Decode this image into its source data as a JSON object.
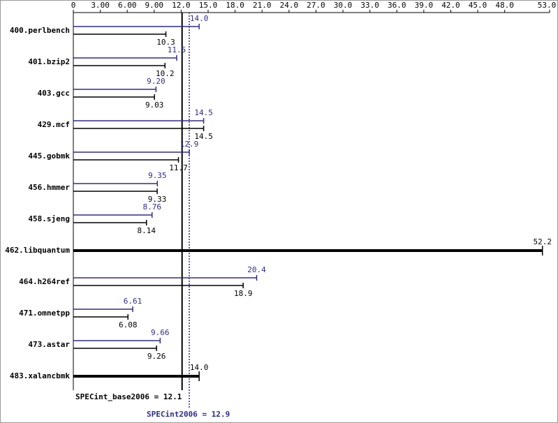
{
  "chart_data": {
    "type": "bar",
    "orientation": "horizontal",
    "categories": [
      "400.perlbench",
      "401.bzip2",
      "403.gcc",
      "429.mcf",
      "445.gobmk",
      "456.hmmer",
      "458.sjeng",
      "462.libquantum",
      "464.h264ref",
      "471.omnetpp",
      "473.astar",
      "483.xalancbmk"
    ],
    "series": [
      {
        "color": "#2b2b96",
        "values": [
          14.0,
          11.5,
          9.2,
          14.5,
          12.9,
          9.35,
          8.76,
          null,
          20.4,
          6.61,
          9.66,
          null
        ],
        "value_labels": [
          "14.0",
          "11.5",
          "9.20",
          "14.5",
          "12.9",
          "9.35",
          "8.76",
          null,
          "20.4",
          "6.61",
          "9.66",
          null
        ]
      },
      {
        "color": "#000000",
        "values": [
          10.3,
          10.2,
          9.03,
          14.5,
          11.7,
          9.33,
          8.14,
          52.2,
          18.9,
          6.08,
          9.26,
          14.0
        ],
        "value_labels": [
          "10.3",
          "10.2",
          "9.03",
          "14.5",
          "11.7",
          "9.33",
          "8.14",
          "52.2",
          "18.9",
          "6.08",
          "9.26",
          "14.0"
        ]
      }
    ],
    "xlim": [
      0,
      53
    ],
    "xticks": [
      0,
      {
        "value": 3,
        "label": "3.00"
      },
      {
        "value": 6,
        "label": "6.00"
      },
      {
        "value": 9,
        "label": "9.00"
      },
      {
        "value": 12,
        "label": "12.0"
      },
      {
        "value": 15,
        "label": "15.0"
      },
      {
        "value": 18,
        "label": "18.0"
      },
      {
        "value": 21,
        "label": "21.0"
      },
      {
        "value": 24,
        "label": "24.0"
      },
      {
        "value": 27,
        "label": "27.0"
      },
      {
        "value": 30,
        "label": "30.0"
      },
      {
        "value": 33,
        "label": "33.0"
      },
      {
        "value": 36,
        "label": "36.0"
      },
      {
        "value": 39,
        "label": "39.0"
      },
      {
        "value": 42,
        "label": "42.0"
      },
      {
        "value": 45,
        "label": "45.0"
      },
      {
        "value": 48,
        "label": "48.0"
      },
      {
        "value": 53,
        "label": "53.0"
      }
    ],
    "reference_lines": [
      {
        "text": "SPECint_base2006 = 12.1",
        "value": 12.1,
        "color": "#000000",
        "style": "solid"
      },
      {
        "text": "SPECint2006 = 12.9",
        "value": 12.9,
        "color": "#2b2b96",
        "style": "dotted"
      }
    ]
  }
}
